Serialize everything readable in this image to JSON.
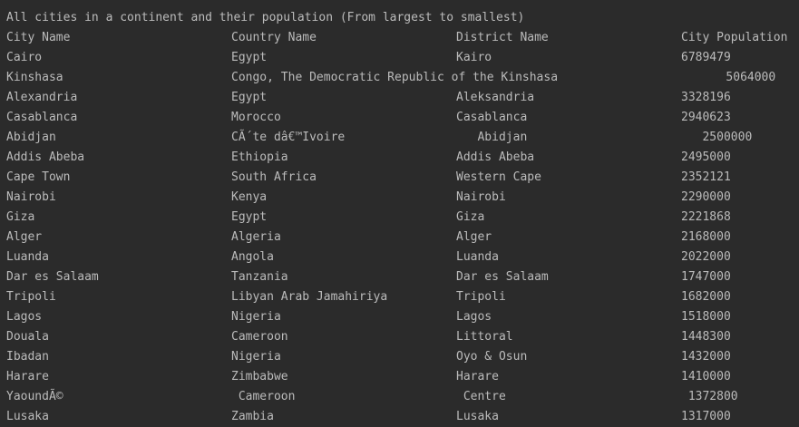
{
  "title": "All cities in a continent and their population (From largest to smallest)",
  "table": {
    "header": [
      "City Name",
      "Country Name",
      "District Name",
      "City Population"
    ],
    "rows": [
      [
        "Cairo",
        "Egypt",
        "Kairo",
        "6789479"
      ],
      [
        "Kinshasa",
        "Congo, The Democratic Republic of the ",
        "Kinshasa",
        "5064000"
      ],
      [
        "Alexandria",
        "Egypt",
        "Aleksandria",
        "3328196"
      ],
      [
        "Casablanca",
        "Morocco",
        "Casablanca",
        "2940623"
      ],
      [
        "Abidjan",
        "CÃ´te dâ€™Ivoire",
        "   Abidjan",
        "   2500000"
      ],
      [
        "Addis Abeba",
        "Ethiopia",
        "Addis Abeba",
        "2495000"
      ],
      [
        "Cape Town",
        "South Africa",
        "Western Cape",
        "2352121"
      ],
      [
        "Nairobi",
        "Kenya",
        "Nairobi",
        "2290000"
      ],
      [
        "Giza",
        "Egypt",
        "Giza",
        "2221868"
      ],
      [
        "Alger",
        "Algeria",
        "Alger",
        "2168000"
      ],
      [
        "Luanda",
        "Angola",
        "Luanda",
        "2022000"
      ],
      [
        "Dar es Salaam",
        "Tanzania",
        "Dar es Salaam",
        "1747000"
      ],
      [
        "Tripoli",
        "Libyan Arab Jamahiriya",
        "Tripoli",
        "1682000"
      ],
      [
        "Lagos",
        "Nigeria",
        "Lagos",
        "1518000"
      ],
      [
        "Douala",
        "Cameroon",
        "Littoral",
        "1448300"
      ],
      [
        "Ibadan",
        "Nigeria",
        "Oyo & Osun",
        "1432000"
      ],
      [
        "Harare",
        "Zimbabwe",
        "Harare",
        "1410000"
      ],
      [
        "YaoundÃ©",
        " Cameroon",
        " Centre",
        " 1372800"
      ],
      [
        "Lusaka",
        "Zambia",
        "Lusaka",
        "1317000"
      ]
    ]
  }
}
